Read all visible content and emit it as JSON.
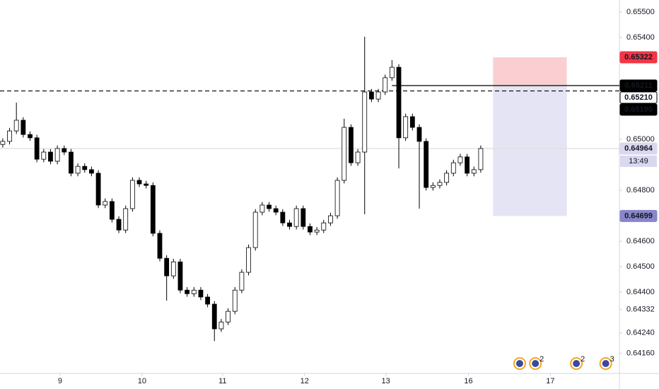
{
  "chart_data": {
    "type": "candlestick",
    "xlim": [
      -0.4,
      90.2
    ],
    "ylim": [
      0.64081,
      0.65547
    ],
    "xticks": [
      {
        "value": 8.4,
        "label": "9"
      },
      {
        "value": 20.4,
        "label": "10"
      },
      {
        "value": 32.2,
        "label": "11"
      },
      {
        "value": 44.2,
        "label": "12"
      },
      {
        "value": 56.1,
        "label": "13"
      },
      {
        "value": 68.2,
        "label": "16"
      },
      {
        "value": 80.2,
        "label": "17"
      }
    ],
    "yticks": [
      {
        "value": 0.655,
        "label": "0.65500"
      },
      {
        "value": 0.654,
        "label": "0.65400"
      },
      {
        "value": 0.65,
        "label": "0.65000"
      },
      {
        "value": 0.648,
        "label": "0.64800"
      },
      {
        "value": 0.646,
        "label": "0.64600"
      },
      {
        "value": 0.645,
        "label": "0.64500"
      },
      {
        "value": 0.644,
        "label": "0.64400"
      },
      {
        "value": 0.64332,
        "label": "0.64332"
      },
      {
        "value": 0.6424,
        "label": "0.64240"
      },
      {
        "value": 0.6416,
        "label": "0.64160"
      }
    ],
    "up_color": "#ffffff",
    "down_color": "#000000",
    "edge_color": "#000000",
    "ohlc": [
      [
        0.6498,
        0.65004,
        0.64968,
        0.64992
      ],
      [
        0.64992,
        0.65045,
        0.6498,
        0.65033
      ],
      [
        0.65033,
        0.65144,
        0.65021,
        0.65075
      ],
      [
        0.65075,
        0.65087,
        0.65007,
        0.65019
      ],
      [
        0.65019,
        0.65031,
        0.64994,
        0.65006
      ],
      [
        0.65006,
        0.65018,
        0.6491,
        0.64922
      ],
      [
        0.64922,
        0.64962,
        0.6491,
        0.6495
      ],
      [
        0.6495,
        0.64962,
        0.64902,
        0.64914
      ],
      [
        0.64914,
        0.64976,
        0.64902,
        0.64964
      ],
      [
        0.64964,
        0.64976,
        0.64938,
        0.6495
      ],
      [
        0.6495,
        0.64962,
        0.64855,
        0.64867
      ],
      [
        0.64867,
        0.64906,
        0.64855,
        0.64894
      ],
      [
        0.64894,
        0.64906,
        0.64869,
        0.64881
      ],
      [
        0.64881,
        0.64893,
        0.64855,
        0.64867
      ],
      [
        0.64867,
        0.64879,
        0.6473,
        0.64742
      ],
      [
        0.64742,
        0.64768,
        0.6473,
        0.64756
      ],
      [
        0.64756,
        0.64768,
        0.64674,
        0.64686
      ],
      [
        0.64686,
        0.64698,
        0.64632,
        0.64644
      ],
      [
        0.64644,
        0.6474,
        0.64632,
        0.64728
      ],
      [
        0.64728,
        0.64851,
        0.64716,
        0.64839
      ],
      [
        0.64839,
        0.64851,
        0.64813,
        0.64825
      ],
      [
        0.64825,
        0.64837,
        0.64807,
        0.64819
      ],
      [
        0.64819,
        0.64831,
        0.64619,
        0.64631
      ],
      [
        0.64631,
        0.64643,
        0.64521,
        0.64533
      ],
      [
        0.64533,
        0.64545,
        0.64367,
        0.64464
      ],
      [
        0.64464,
        0.64531,
        0.64452,
        0.64519
      ],
      [
        0.64519,
        0.64531,
        0.64396,
        0.64408
      ],
      [
        0.64408,
        0.6442,
        0.64382,
        0.64394
      ],
      [
        0.64394,
        0.6442,
        0.64382,
        0.64408
      ],
      [
        0.64408,
        0.6442,
        0.64369,
        0.64381
      ],
      [
        0.64381,
        0.64393,
        0.64341,
        0.64353
      ],
      [
        0.64353,
        0.64365,
        0.64208,
        0.64256
      ],
      [
        0.64256,
        0.64295,
        0.64244,
        0.64283
      ],
      [
        0.64283,
        0.64337,
        0.64271,
        0.64325
      ],
      [
        0.64325,
        0.6442,
        0.64313,
        0.64408
      ],
      [
        0.64408,
        0.6449,
        0.64396,
        0.64478
      ],
      [
        0.64478,
        0.64587,
        0.64466,
        0.64575
      ],
      [
        0.64575,
        0.64726,
        0.64563,
        0.64714
      ],
      [
        0.64714,
        0.64754,
        0.64702,
        0.64742
      ],
      [
        0.64742,
        0.64754,
        0.64716,
        0.64728
      ],
      [
        0.64728,
        0.6474,
        0.64702,
        0.64714
      ],
      [
        0.64714,
        0.64726,
        0.6466,
        0.64672
      ],
      [
        0.64672,
        0.64684,
        0.64646,
        0.64658
      ],
      [
        0.64658,
        0.6474,
        0.64646,
        0.64728
      ],
      [
        0.64728,
        0.6474,
        0.64646,
        0.64658
      ],
      [
        0.64658,
        0.6467,
        0.64624,
        0.64636
      ],
      [
        0.64636,
        0.64656,
        0.64624,
        0.64644
      ],
      [
        0.64644,
        0.64684,
        0.64632,
        0.64672
      ],
      [
        0.64672,
        0.64712,
        0.6466,
        0.647
      ],
      [
        0.647,
        0.64851,
        0.64688,
        0.64839
      ],
      [
        0.64839,
        0.65081,
        0.64827,
        0.65047
      ],
      [
        0.65047,
        0.65059,
        0.64896,
        0.64908
      ],
      [
        0.64908,
        0.64962,
        0.64896,
        0.6495
      ],
      [
        0.6495,
        0.65403,
        0.64706,
        0.65186
      ],
      [
        0.65186,
        0.65198,
        0.65146,
        0.65158
      ],
      [
        0.65158,
        0.65198,
        0.65146,
        0.65186
      ],
      [
        0.65186,
        0.65254,
        0.65174,
        0.65242
      ],
      [
        0.65242,
        0.65311,
        0.6523,
        0.65283
      ],
      [
        0.65283,
        0.65295,
        0.64886,
        0.65006
      ],
      [
        0.65006,
        0.65101,
        0.64994,
        0.65089
      ],
      [
        0.65089,
        0.65101,
        0.65035,
        0.65047
      ],
      [
        0.65047,
        0.65059,
        0.64728,
        0.64992
      ],
      [
        0.64992,
        0.65004,
        0.64799,
        0.64811
      ],
      [
        0.64811,
        0.64831,
        0.64799,
        0.64819
      ],
      [
        0.64819,
        0.64843,
        0.64807,
        0.64831
      ],
      [
        0.64831,
        0.64879,
        0.64819,
        0.64867
      ],
      [
        0.64867,
        0.6492,
        0.64855,
        0.64908
      ],
      [
        0.64908,
        0.64943,
        0.64896,
        0.64931
      ],
      [
        0.64931,
        0.64943,
        0.64855,
        0.64867
      ],
      [
        0.64867,
        0.64893,
        0.64855,
        0.64881
      ],
      [
        0.64881,
        0.64976,
        0.64869,
        0.64964
      ]
    ],
    "hlines": [
      {
        "value": 0.65211,
        "x_start": 57,
        "style": "solid",
        "color": "#000000"
      },
      {
        "value": 0.6519,
        "x_start": -0.4,
        "style": "dashed",
        "color": "#000000"
      },
      {
        "value": 0.64964,
        "x_start": -0.4,
        "style": "solid",
        "color": "#dddddd"
      }
    ],
    "position": {
      "x": [
        71.8,
        82.6
      ],
      "stop": 0.65322,
      "entry": 0.65211,
      "target": 0.64699,
      "stop_color": "#fbcfd1",
      "target_color": "#e4e4f5"
    },
    "price_labels": [
      {
        "value": 0.65322,
        "label": "0.65322",
        "bg": "#f23645",
        "fg": "#ffffff"
      },
      {
        "value": 0.65211,
        "label": "0.65211",
        "bg": "#000000",
        "fg": "#ffffff"
      },
      {
        "value": 0.6521,
        "label": "0.65210",
        "bg": "#ffffff",
        "fg": "#000000"
      },
      {
        "value": 0.6519,
        "label": "0.65190",
        "bg": "#000000",
        "fg": "#ffffff"
      },
      {
        "value": 0.64964,
        "label": "0.64964",
        "bg": "#d9d8ef",
        "fg": "#131722"
      },
      {
        "value": 0.64699,
        "label": "0.64699",
        "bg": "#8a86c9",
        "fg": "#ffffff"
      }
    ],
    "countdown": "13:49",
    "events": [
      {
        "x": 75.7
      },
      {
        "x": 78.0,
        "label": "2"
      },
      {
        "x": 84.0,
        "label": "2"
      },
      {
        "x": 88.3,
        "label": "3"
      }
    ]
  }
}
